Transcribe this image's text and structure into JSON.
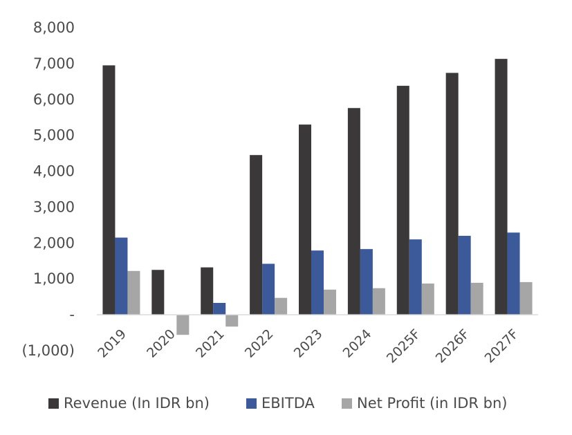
{
  "chart_data": {
    "type": "bar",
    "categories": [
      "2019",
      "2020",
      "2021",
      "2022",
      "2023",
      "2024",
      "2025F",
      "2026F",
      "2027F"
    ],
    "series": [
      {
        "name": "Revenue (In IDR bn)",
        "color": "#3a3838",
        "values": [
          6950,
          1250,
          1320,
          4450,
          5300,
          5760,
          6380,
          6740,
          7130
        ]
      },
      {
        "name": "EBITDA",
        "color": "#3c5a9a",
        "values": [
          2150,
          0,
          330,
          1420,
          1790,
          1830,
          2100,
          2200,
          2290
        ]
      },
      {
        "name": "Net Profit (in IDR bn)",
        "color": "#a6a6a6",
        "values": [
          1220,
          -560,
          -330,
          470,
          700,
          740,
          870,
          890,
          910
        ]
      }
    ],
    "ylim": [
      -1000,
      8000
    ],
    "yticks": [
      8000,
      7000,
      6000,
      5000,
      4000,
      3000,
      2000,
      1000,
      0,
      -1000
    ],
    "ytick_labels": [
      "8,000",
      "7,000",
      "6,000",
      "5,000",
      "4,000",
      "3,000",
      "2,000",
      "1,000",
      "-",
      "(1,000)"
    ],
    "grid": false,
    "legend_position": "bottom"
  }
}
